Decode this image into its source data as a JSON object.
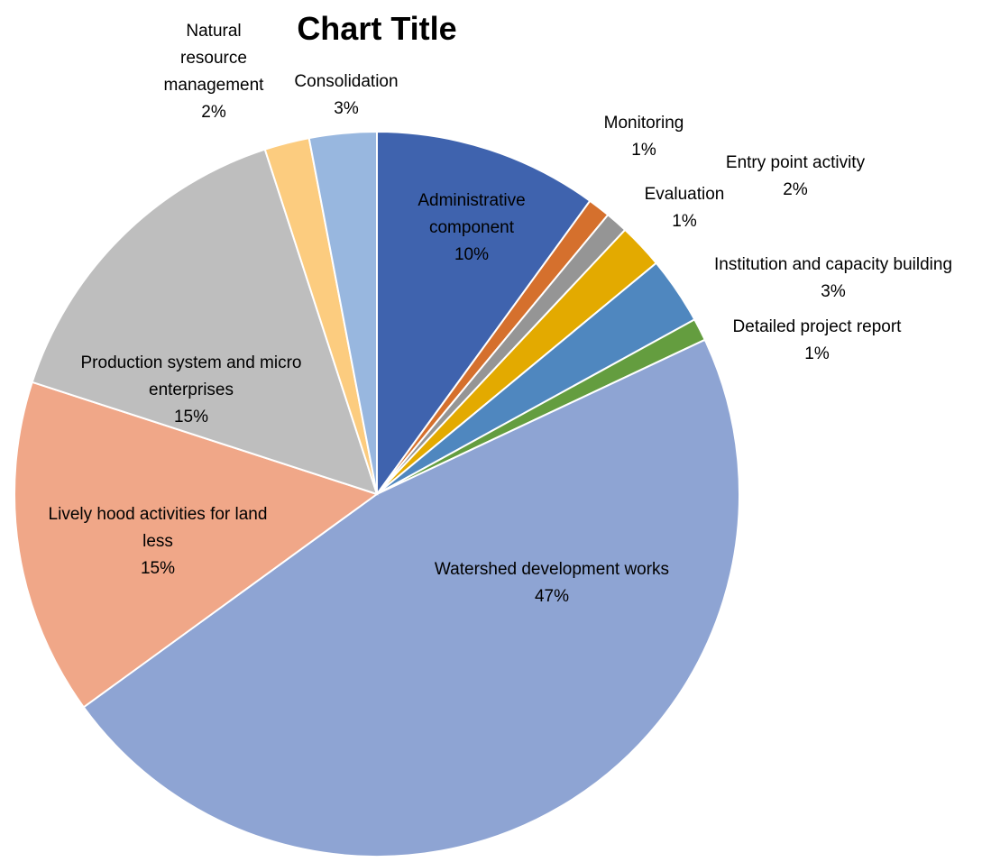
{
  "chart_data": {
    "type": "pie",
    "title": "Chart Title",
    "start_angle_deg": 0,
    "direction": "clockwise",
    "slices": [
      {
        "label": "Administrative component",
        "label_lines": [
          "Administrative",
          "component"
        ],
        "value": 10,
        "percent_label": "10%",
        "color": "#3F63AE"
      },
      {
        "label": "Monitoring",
        "label_lines": [
          "Monitoring"
        ],
        "value": 1,
        "percent_label": "1%",
        "color": "#D5702D"
      },
      {
        "label": "Evaluation",
        "label_lines": [
          "Evaluation"
        ],
        "value": 1,
        "percent_label": "1%",
        "color": "#959595"
      },
      {
        "label": "Entry point activity",
        "label_lines": [
          "Entry point activity"
        ],
        "value": 2,
        "percent_label": "2%",
        "color": "#E3AA00"
      },
      {
        "label": "Institution and capacity building",
        "label_lines": [
          "Institution and capacity building"
        ],
        "value": 3,
        "percent_label": "3%",
        "color": "#4F87BF"
      },
      {
        "label": "Detailed project report",
        "label_lines": [
          "Detailed project report"
        ],
        "value": 1,
        "percent_label": "1%",
        "color": "#649D3F"
      },
      {
        "label": "Watershed development works",
        "label_lines": [
          "Watershed development works"
        ],
        "value": 47,
        "percent_label": "47%",
        "color": "#8EA4D3"
      },
      {
        "label": "Lively hood activities for land less",
        "label_lines": [
          "Lively hood activities for land",
          "less"
        ],
        "value": 15,
        "percent_label": "15%",
        "color": "#F0A788"
      },
      {
        "label": "Production system and micro enterprises",
        "label_lines": [
          "Production system and micro",
          "enterprises"
        ],
        "value": 15,
        "percent_label": "15%",
        "color": "#BEBEBE"
      },
      {
        "label": "Natural resource management",
        "label_lines": [
          "Natural",
          "resource",
          "management"
        ],
        "value": 2,
        "percent_label": "2%",
        "color": "#FCCC7F"
      },
      {
        "label": "Consolidation",
        "label_lines": [
          "Consolidation"
        ],
        "value": 3,
        "percent_label": "3%",
        "color": "#98B7DF"
      }
    ]
  }
}
